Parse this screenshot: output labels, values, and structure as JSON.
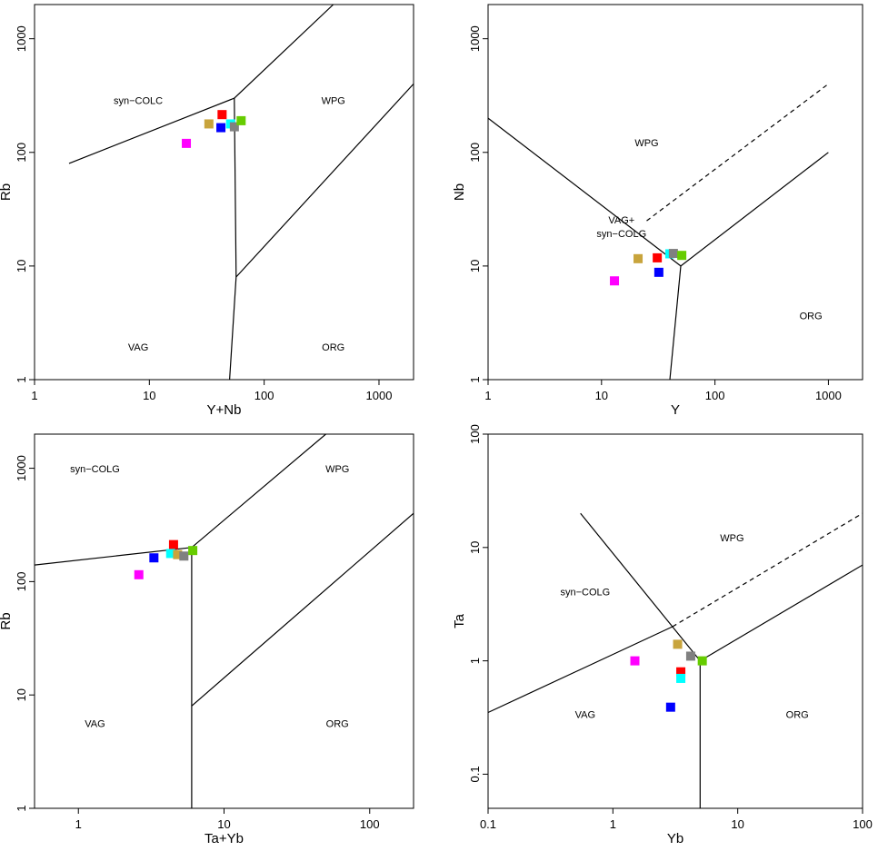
{
  "chart_data": [
    {
      "type": "scatter",
      "xlabel": "Y+Nb",
      "ylabel": "Rb",
      "xscale": "log",
      "yscale": "log",
      "xlim": [
        1,
        2000
      ],
      "ylim": [
        1,
        2000
      ],
      "xticks": [
        1,
        10,
        100,
        1000
      ],
      "xtick_labels": [
        "1",
        "10",
        "100",
        "1000"
      ],
      "yticks": [
        1,
        10,
        100,
        1000
      ],
      "ytick_labels": [
        "1",
        "10",
        "100",
        "1000"
      ],
      "regions": [
        {
          "label": "syn−COLC",
          "x": 8,
          "y": 280
        },
        {
          "label": "WPG",
          "x": 400,
          "y": 280
        },
        {
          "label": "VAG",
          "x": 8,
          "y": 1.9
        },
        {
          "label": "ORG",
          "x": 400,
          "y": 1.9
        }
      ],
      "boundaries": [
        {
          "style": "solid",
          "points": [
            [
              2,
              80
            ],
            [
              55,
              300
            ],
            [
              400,
              2000
            ]
          ]
        },
        {
          "style": "solid",
          "points": [
            [
              55,
              300
            ],
            [
              57,
              8
            ],
            [
              50,
              1
            ]
          ]
        },
        {
          "style": "solid",
          "points": [
            [
              57,
              8
            ],
            [
              2000,
              400
            ]
          ]
        }
      ],
      "points": [
        {
          "x": 43,
          "y": 215,
          "color": "#ff0000"
        },
        {
          "x": 33,
          "y": 178,
          "color": "#c8a43c"
        },
        {
          "x": 51,
          "y": 178,
          "color": "#00ffff"
        },
        {
          "x": 42,
          "y": 165,
          "color": "#0000ff"
        },
        {
          "x": 55,
          "y": 168,
          "color": "#808080"
        },
        {
          "x": 63,
          "y": 190,
          "color": "#66cc00"
        },
        {
          "x": 21,
          "y": 120,
          "color": "#ff00ff"
        }
      ]
    },
    {
      "type": "scatter",
      "xlabel": "Y",
      "ylabel": "Nb",
      "xscale": "log",
      "yscale": "log",
      "xlim": [
        1,
        2000
      ],
      "ylim": [
        1,
        2000
      ],
      "xticks": [
        1,
        10,
        100,
        1000
      ],
      "xtick_labels": [
        "1",
        "10",
        "100",
        "1000"
      ],
      "yticks": [
        1,
        10,
        100,
        1000
      ],
      "ytick_labels": [
        "1",
        "10",
        "100",
        "1000"
      ],
      "regions": [
        {
          "label": "WPG",
          "x": 25,
          "y": 120
        },
        {
          "label": "VAG+",
          "x": 15,
          "y": 25
        },
        {
          "label": "syn−COLG",
          "x": 15,
          "y": 19
        },
        {
          "label": "ORG",
          "x": 700,
          "y": 3.6
        }
      ],
      "boundaries": [
        {
          "style": "solid",
          "points": [
            [
              1,
              200
            ],
            [
              50,
              10
            ]
          ]
        },
        {
          "style": "solid",
          "points": [
            [
              50,
              10
            ],
            [
              40,
              1
            ]
          ]
        },
        {
          "style": "solid",
          "points": [
            [
              50,
              10
            ],
            [
              1000,
              100
            ]
          ]
        },
        {
          "style": "dashed",
          "points": [
            [
              25,
              25
            ],
            [
              1000,
              400
            ]
          ]
        }
      ],
      "points": [
        {
          "x": 31,
          "y": 11.8,
          "color": "#ff0000"
        },
        {
          "x": 21,
          "y": 11.6,
          "color": "#c8a43c"
        },
        {
          "x": 40,
          "y": 12.8,
          "color": "#00ffff"
        },
        {
          "x": 43,
          "y": 12.9,
          "color": "#808080"
        },
        {
          "x": 51,
          "y": 12.4,
          "color": "#66cc00"
        },
        {
          "x": 32,
          "y": 8.8,
          "color": "#0000ff"
        },
        {
          "x": 13,
          "y": 7.4,
          "color": "#ff00ff"
        }
      ]
    },
    {
      "type": "scatter",
      "xlabel": "Ta+Yb",
      "ylabel": "Rb",
      "xscale": "log",
      "yscale": "log",
      "xlim": [
        0.5,
        200
      ],
      "ylim": [
        1,
        2000
      ],
      "xticks": [
        1,
        10,
        100
      ],
      "xtick_labels": [
        "1",
        "10",
        "100"
      ],
      "yticks": [
        1,
        10,
        100,
        1000
      ],
      "ytick_labels": [
        "1",
        "10",
        "100",
        "1000"
      ],
      "regions": [
        {
          "label": "syn−COLG",
          "x": 1.3,
          "y": 970
        },
        {
          "label": "WPG",
          "x": 60,
          "y": 970
        },
        {
          "label": "VAG",
          "x": 1.3,
          "y": 5.5
        },
        {
          "label": "ORG",
          "x": 60,
          "y": 5.5
        }
      ],
      "boundaries": [
        {
          "style": "solid",
          "points": [
            [
              0.5,
              140
            ],
            [
              6,
              200
            ],
            [
              50,
              2000
            ]
          ]
        },
        {
          "style": "solid",
          "points": [
            [
              6,
              200
            ],
            [
              6,
              1
            ]
          ]
        },
        {
          "style": "solid",
          "points": [
            [
              6,
              8
            ],
            [
              200,
              400
            ]
          ]
        }
      ],
      "points": [
        {
          "x": 4.5,
          "y": 212,
          "color": "#ff0000"
        },
        {
          "x": 4.3,
          "y": 177,
          "color": "#00ffff"
        },
        {
          "x": 4.8,
          "y": 173,
          "color": "#c8a43c"
        },
        {
          "x": 5.3,
          "y": 168,
          "color": "#808080"
        },
        {
          "x": 6.1,
          "y": 188,
          "color": "#66cc00"
        },
        {
          "x": 3.3,
          "y": 162,
          "color": "#0000ff"
        },
        {
          "x": 2.6,
          "y": 115,
          "color": "#ff00ff"
        }
      ]
    },
    {
      "type": "scatter",
      "xlabel": "Yb",
      "ylabel": "Ta",
      "xscale": "log",
      "yscale": "log",
      "xlim": [
        0.1,
        100
      ],
      "ylim": [
        0.05,
        100
      ],
      "xticks": [
        0.1,
        1,
        10,
        100
      ],
      "xtick_labels": [
        "0.1",
        "1",
        "10",
        "100"
      ],
      "yticks": [
        0.1,
        1,
        10,
        100
      ],
      "ytick_labels": [
        "0.1",
        "1",
        "10",
        "100"
      ],
      "regions": [
        {
          "label": "WPG",
          "x": 9,
          "y": 12
        },
        {
          "label": "syn−COLG",
          "x": 0.6,
          "y": 4
        },
        {
          "label": "VAG",
          "x": 0.6,
          "y": 0.33
        },
        {
          "label": "ORG",
          "x": 30,
          "y": 0.33
        }
      ],
      "boundaries": [
        {
          "style": "solid",
          "points": [
            [
              0.55,
              20
            ],
            [
              5,
              1
            ]
          ]
        },
        {
          "style": "solid",
          "points": [
            [
              0.1,
              0.35
            ],
            [
              3,
              2
            ]
          ]
        },
        {
          "style": "solid",
          "points": [
            [
              5,
              1
            ],
            [
              5,
              0.05
            ]
          ]
        },
        {
          "style": "solid",
          "points": [
            [
              5,
              1
            ],
            [
              100,
              7
            ]
          ]
        },
        {
          "style": "dashed",
          "points": [
            [
              3,
              2
            ],
            [
              100,
              20
            ]
          ]
        }
      ],
      "points": [
        {
          "x": 3.3,
          "y": 1.4,
          "color": "#c8a43c"
        },
        {
          "x": 4.2,
          "y": 1.1,
          "color": "#808080"
        },
        {
          "x": 5.2,
          "y": 1.0,
          "color": "#66cc00"
        },
        {
          "x": 3.5,
          "y": 0.8,
          "color": "#ff0000"
        },
        {
          "x": 3.5,
          "y": 0.7,
          "color": "#00ffff"
        },
        {
          "x": 1.5,
          "y": 1.0,
          "color": "#ff00ff"
        },
        {
          "x": 2.9,
          "y": 0.39,
          "color": "#0000ff"
        }
      ]
    }
  ]
}
